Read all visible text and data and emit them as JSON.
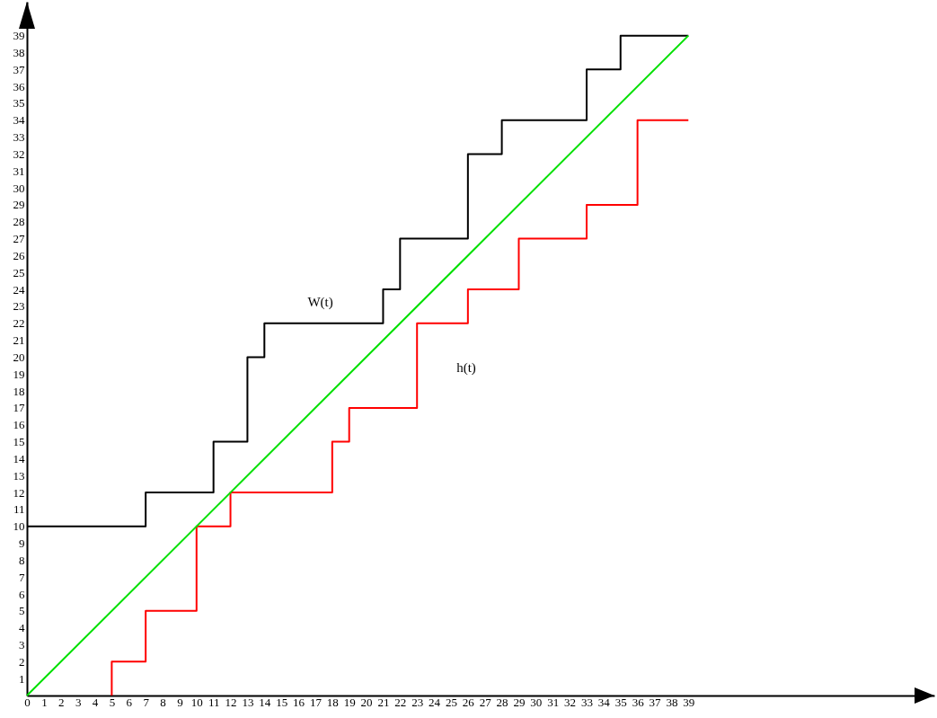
{
  "chart_data": {
    "type": "step",
    "xlim": [
      0,
      53.5
    ],
    "ylim": [
      0,
      41
    ],
    "xticks": [
      0,
      1,
      2,
      3,
      4,
      5,
      6,
      7,
      8,
      9,
      10,
      11,
      12,
      13,
      14,
      15,
      16,
      17,
      18,
      19,
      20,
      21,
      22,
      23,
      24,
      25,
      26,
      27,
      28,
      29,
      30,
      31,
      32,
      33,
      34,
      35,
      36,
      37,
      38,
      39
    ],
    "yticks": [
      1,
      2,
      3,
      4,
      5,
      6,
      7,
      8,
      9,
      10,
      11,
      12,
      13,
      14,
      15,
      16,
      17,
      18,
      19,
      20,
      21,
      22,
      23,
      24,
      25,
      26,
      27,
      28,
      29,
      30,
      31,
      32,
      33,
      34,
      35,
      36,
      37,
      38,
      39
    ],
    "series": [
      {
        "color": "#000000",
        "x": [
          0,
          7,
          11,
          13,
          14,
          21,
          22,
          26,
          28,
          33,
          35,
          39
        ],
        "values": [
          10,
          12,
          15,
          20,
          22,
          24,
          27,
          32,
          34,
          37,
          39,
          39
        ]
      },
      {
        "color": "#ff0000",
        "x": [
          5,
          5,
          7,
          10,
          12,
          18,
          19,
          23,
          26,
          29,
          33,
          36,
          39
        ],
        "values": [
          0,
          2,
          5,
          10,
          12,
          15,
          17,
          22,
          24,
          27,
          29,
          34,
          34
        ]
      },
      {
        "type": "line",
        "color": "#00e000",
        "x": [
          0,
          39
        ],
        "values": [
          0,
          39
        ]
      }
    ],
    "annotations": [
      {
        "text": "W(t)",
        "x": 17.3,
        "y": 22
      },
      {
        "text": "h(t)",
        "x": 23,
        "y": 19.4
      }
    ]
  }
}
